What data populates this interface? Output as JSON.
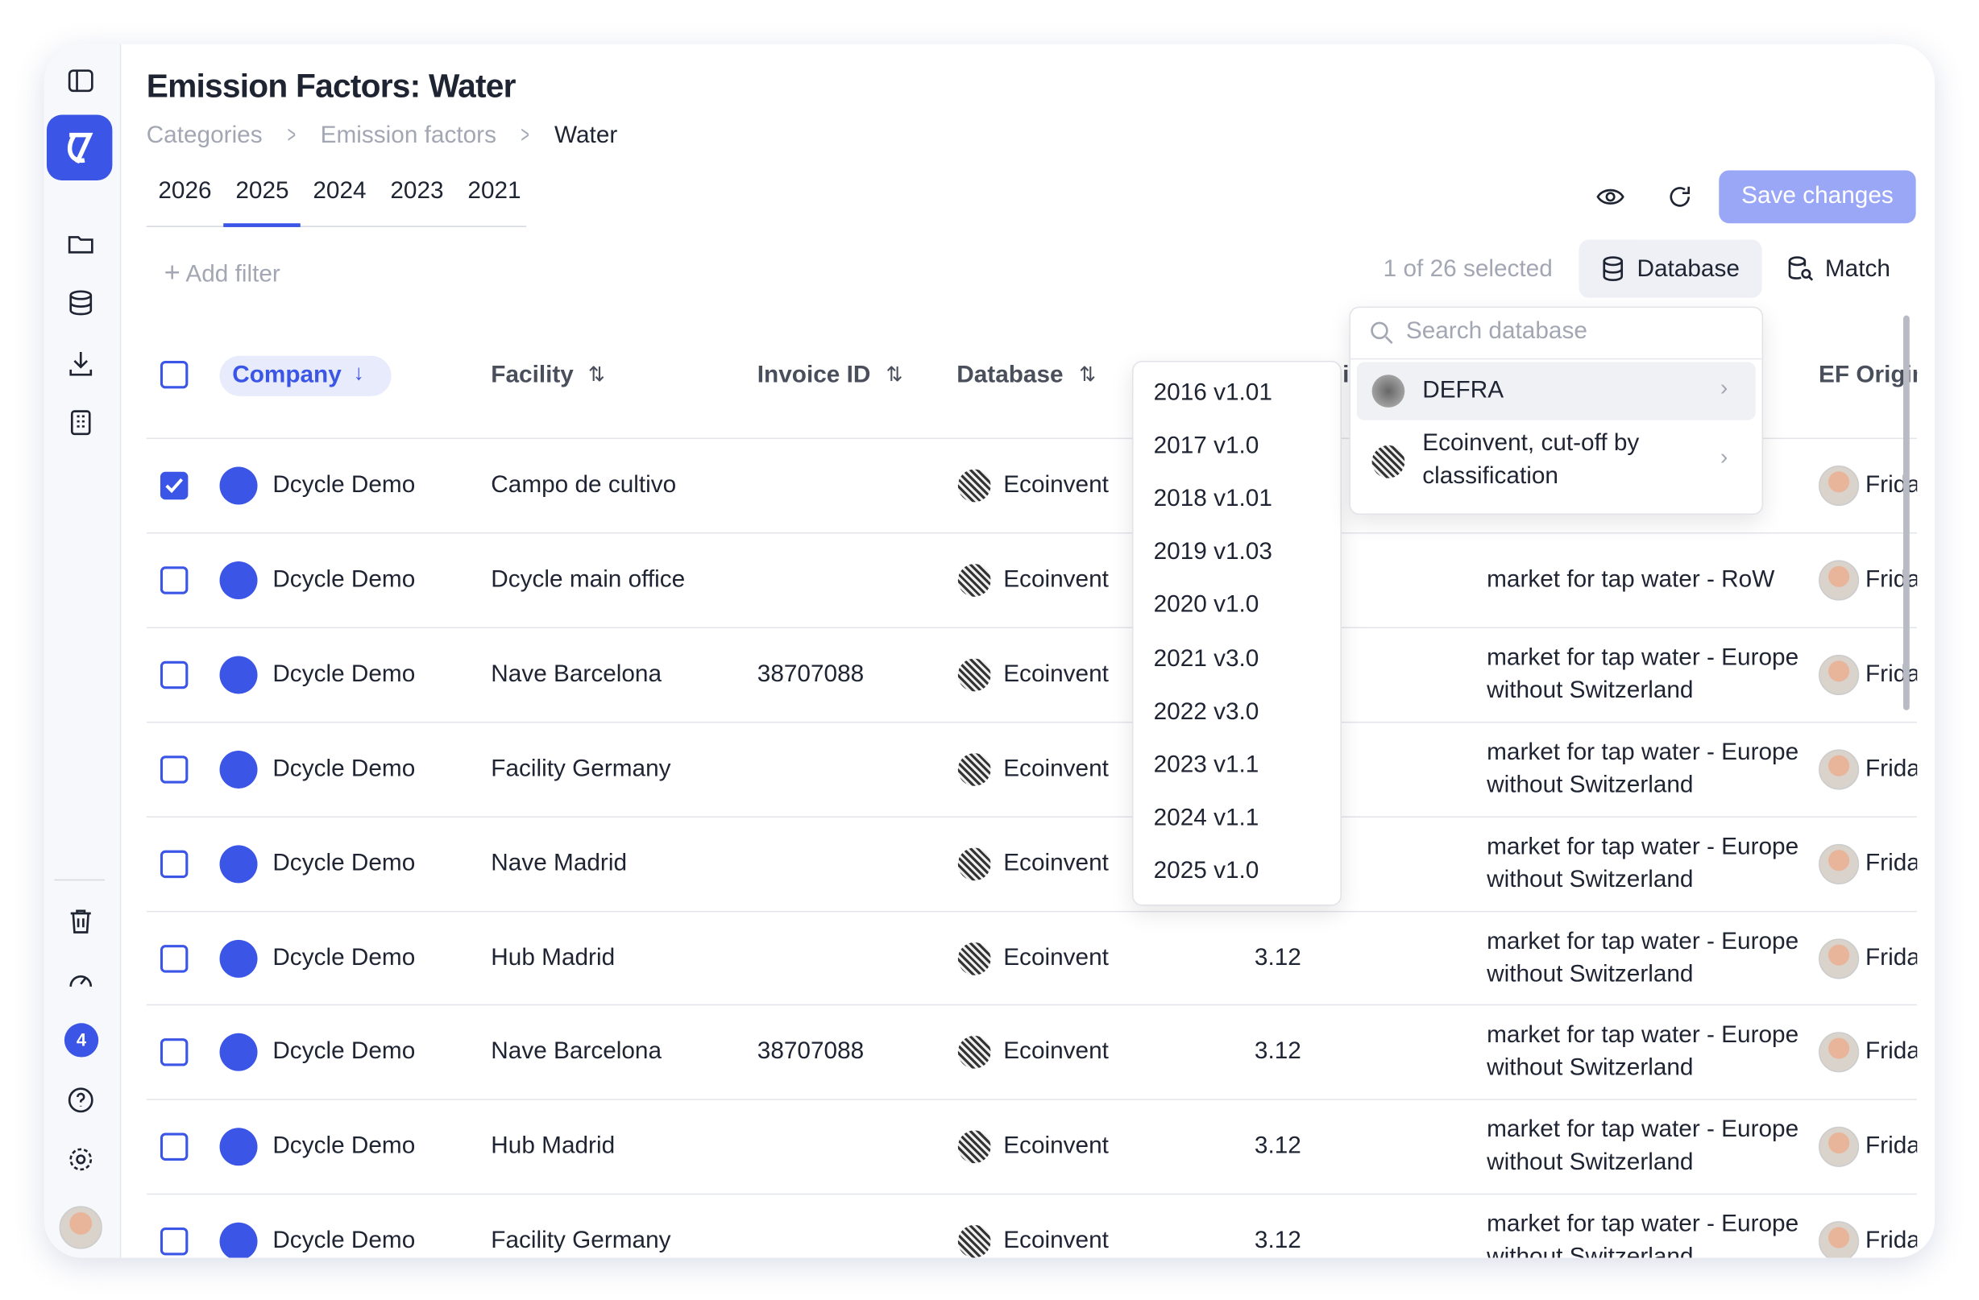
{
  "header": {
    "title": "Emission Factors: Water",
    "breadcrumbs": [
      "Categories",
      "Emission factors",
      "Water"
    ]
  },
  "year_tabs": {
    "items": [
      "2026",
      "2025",
      "2024",
      "2023",
      "2021"
    ],
    "active": 1
  },
  "toolbar": {
    "add_filter": "Add filter",
    "selection": "1 of 26 selected",
    "database_button": "Database",
    "match_button": "Match",
    "save_button": "Save changes"
  },
  "sidebar": {
    "badge": "4"
  },
  "table": {
    "columns": [
      "Company",
      "Facility",
      "Invoice ID",
      "Database",
      "EF Version",
      "EF Origin"
    ],
    "rows": [
      {
        "checked": true,
        "company": "Dcycle Demo",
        "facility": "Campo de cultivo",
        "database": "Ecoinvent",
        "origin": "Frida"
      },
      {
        "checked": false,
        "company": "Dcycle Demo",
        "facility": "Dcycle main office",
        "database": "Ecoinvent",
        "ef_name": "market for tap water - RoW",
        "origin": "Frida"
      },
      {
        "checked": false,
        "company": "Dcycle Demo",
        "facility": "Nave Barcelona",
        "invoice": "38707088",
        "database": "Ecoinvent",
        "ef_name": "market for tap water - Europe without Switzerland",
        "origin": "Frida"
      },
      {
        "checked": false,
        "company": "Dcycle Demo",
        "facility": "Facility Germany",
        "database": "Ecoinvent",
        "ef_name": "market for tap water - Europe without Switzerland",
        "origin": "Frida"
      },
      {
        "checked": false,
        "company": "Dcycle Demo",
        "facility": "Nave Madrid",
        "database": "Ecoinvent",
        "ef_name": "market for tap water - Europe without Switzerland",
        "origin": "Frida"
      },
      {
        "checked": false,
        "company": "Dcycle Demo",
        "facility": "Hub Madrid",
        "database": "Ecoinvent",
        "ef_version": "3.12",
        "ef_name": "market for tap water - Europe without Switzerland",
        "origin": "Frida"
      },
      {
        "checked": false,
        "company": "Dcycle Demo",
        "facility": "Nave Barcelona",
        "invoice": "38707088",
        "database": "Ecoinvent",
        "ef_version": "3.12",
        "ef_name": "market for tap water - Europe without Switzerland",
        "origin": "Frida"
      },
      {
        "checked": false,
        "company": "Dcycle Demo",
        "facility": "Hub Madrid",
        "database": "Ecoinvent",
        "ef_version": "3.12",
        "ef_name": "market for tap water - Europe without Switzerland",
        "origin": "Frida"
      },
      {
        "checked": false,
        "company": "Dcycle Demo",
        "facility": "Facility Germany",
        "database": "Ecoinvent",
        "ef_version": "3.12",
        "ef_name": "market for tap water - Europe without Switzerland",
        "origin": "Frida"
      }
    ]
  },
  "version_dropdown": {
    "items": [
      "2016 v1.01",
      "2017 v1.0",
      "2018 v1.01",
      "2019 v1.03",
      "2020 v1.0",
      "2021 v3.0",
      "2022 v3.0",
      "2023 v1.1",
      "2024 v1.1",
      "2025 v1.0"
    ]
  },
  "database_popover": {
    "search_placeholder": "Search database",
    "items": [
      "DEFRA",
      "Ecoinvent, cut-off by classification"
    ]
  }
}
